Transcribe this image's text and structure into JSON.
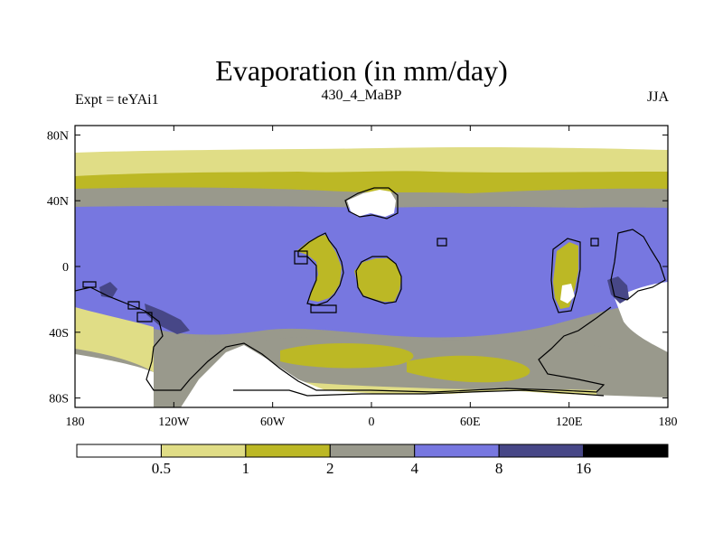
{
  "title": "Evaporation (in mm/day)",
  "left_string": "Expt = teYAi1",
  "center_string": "430_4_MaBP",
  "right_string": "JJA",
  "y_ticks": [
    {
      "label": "80N",
      "lat": 80
    },
    {
      "label": "40N",
      "lat": 40
    },
    {
      "label": "0",
      "lat": 0
    },
    {
      "label": "40S",
      "lat": -40
    },
    {
      "label": "80S",
      "lat": -80
    }
  ],
  "x_ticks": [
    {
      "label": "180",
      "lon": -180
    },
    {
      "label": "120W",
      "lon": -120
    },
    {
      "label": "60W",
      "lon": -60
    },
    {
      "label": "0",
      "lon": 0
    },
    {
      "label": "60E",
      "lon": 60
    },
    {
      "label": "120E",
      "lon": 120
    },
    {
      "label": "180",
      "lon": 180
    }
  ],
  "colorbar": {
    "levels": [
      "0.5",
      "1",
      "2",
      "4",
      "8",
      "16"
    ],
    "colors": [
      "#ffffff",
      "#e0dd86",
      "#bcb825",
      "#99998c",
      "#7777e0",
      "#474787",
      "#000000"
    ]
  },
  "palette": {
    "white": "#ffffff",
    "light_yellow": "#e0dd86",
    "olive": "#bcb825",
    "gray": "#99998c",
    "blue": "#7777e0",
    "dark_blue": "#474787"
  }
}
